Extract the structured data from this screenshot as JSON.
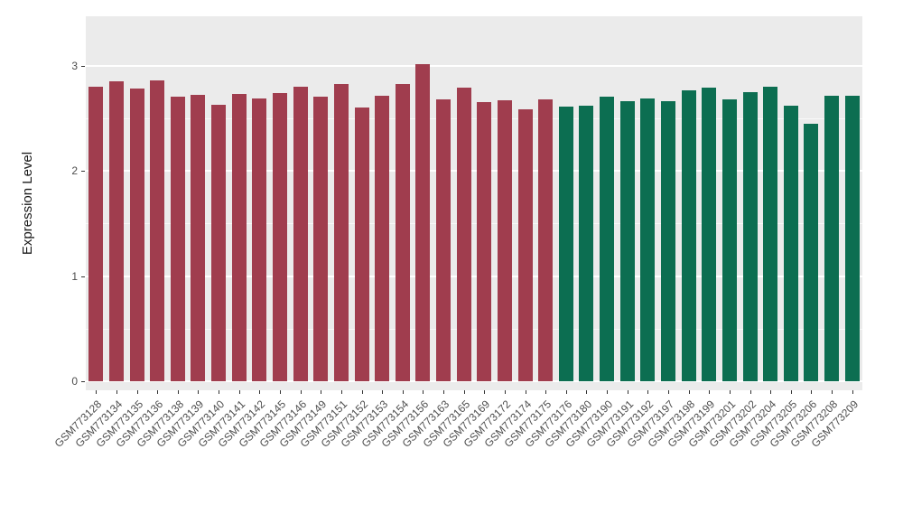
{
  "chart_data": {
    "type": "bar",
    "title": "",
    "xlabel": "",
    "ylabel": "Expression Level",
    "ylim": [
      0,
      3.45
    ],
    "yticks": [
      0,
      1,
      2,
      3
    ],
    "yticks_minor": [
      0.5,
      1.5,
      2.5
    ],
    "grid": "on",
    "legend": "none",
    "panel_background": "#ebebeb",
    "categories": [
      "GSM773128",
      "GSM773134",
      "GSM773135",
      "GSM773136",
      "GSM773138",
      "GSM773139",
      "GSM773140",
      "GSM773141",
      "GSM773142",
      "GSM773145",
      "GSM773146",
      "GSM773149",
      "GSM773151",
      "GSM773152",
      "GSM773153",
      "GSM773154",
      "GSM773156",
      "GSM773163",
      "GSM773165",
      "GSM773169",
      "GSM773172",
      "GSM773174",
      "GSM773175",
      "GSM773176",
      "GSM773180",
      "GSM773190",
      "GSM773191",
      "GSM773192",
      "GSM773197",
      "GSM773198",
      "GSM773199",
      "GSM773201",
      "GSM773202",
      "GSM773204",
      "GSM773205",
      "GSM773206",
      "GSM773208",
      "GSM773209"
    ],
    "values": [
      2.8,
      2.85,
      2.78,
      2.86,
      2.7,
      2.72,
      2.63,
      2.73,
      2.69,
      2.74,
      2.8,
      2.7,
      2.82,
      2.6,
      2.71,
      2.82,
      3.01,
      2.68,
      2.79,
      2.65,
      2.67,
      2.58,
      2.68,
      2.61,
      2.62,
      2.7,
      2.66,
      2.69,
      2.66,
      2.76,
      2.79,
      2.68,
      2.75,
      2.8,
      2.62,
      2.45,
      2.71,
      2.71
    ],
    "groups": [
      "group1",
      "group1",
      "group1",
      "group1",
      "group1",
      "group1",
      "group1",
      "group1",
      "group1",
      "group1",
      "group1",
      "group1",
      "group1",
      "group1",
      "group1",
      "group1",
      "group1",
      "group1",
      "group1",
      "group1",
      "group1",
      "group1",
      "group1",
      "group2",
      "group2",
      "group2",
      "group2",
      "group2",
      "group2",
      "group2",
      "group2",
      "group2",
      "group2",
      "group2",
      "group2",
      "group2",
      "group2",
      "group2"
    ],
    "group_colors": {
      "group1": "#a03d4e",
      "group2": "#0c6e51"
    }
  }
}
